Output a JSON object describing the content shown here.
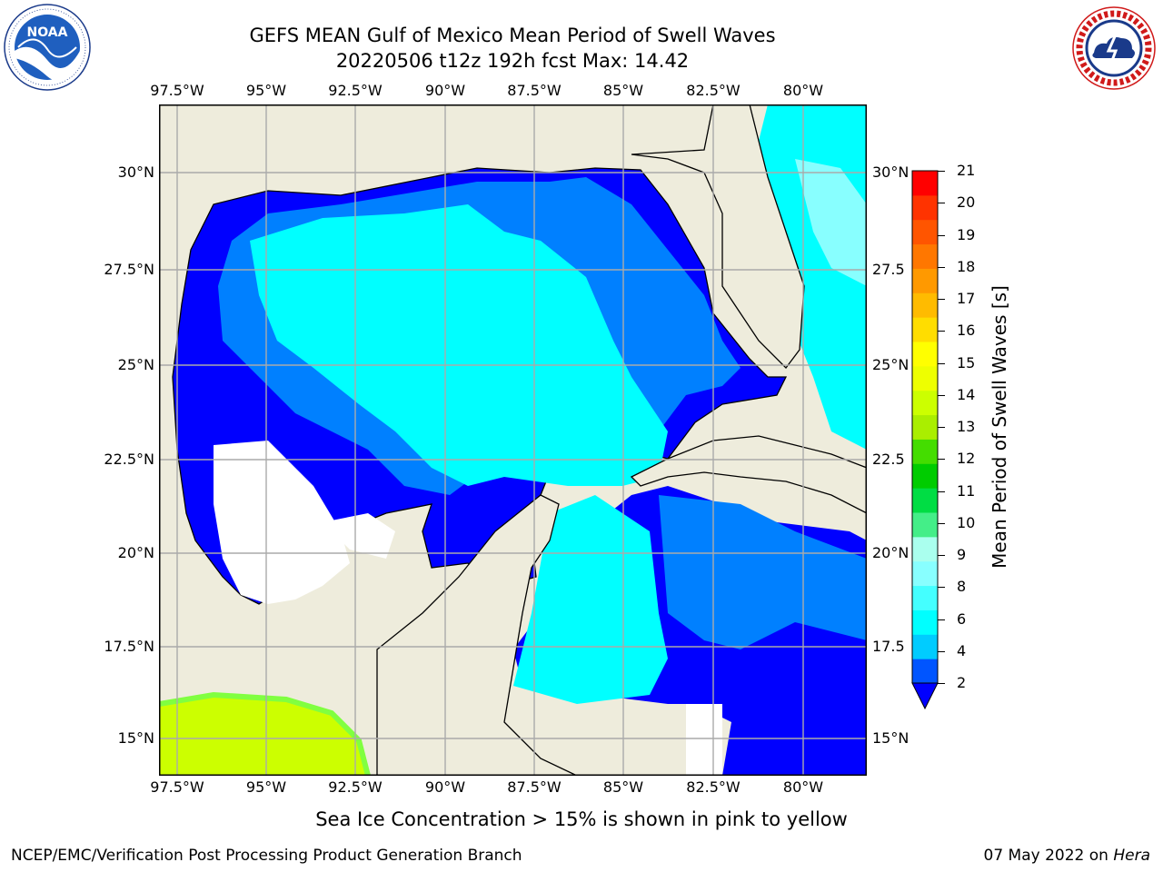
{
  "title": {
    "line1": "GEFS MEAN Gulf of Mexico Mean Period of Swell Waves",
    "line2": "20220506 t12z 192h fcst   Max: 14.42"
  },
  "logos": {
    "left": {
      "name": "NOAA",
      "ring_text": "NATIONAL OCEANIC AND ATMOSPHERIC ADMINISTRATION · U.S. DEPARTMENT OF COMMERCE"
    },
    "right": {
      "name": "NATIONAL WEATHER SERVICE"
    }
  },
  "map": {
    "lon_ticks": [
      "97.5°W",
      "95°W",
      "92.5°W",
      "90°W",
      "87.5°W",
      "85°W",
      "82.5°W",
      "80°W"
    ],
    "lat_ticks_left": [
      "30°N",
      "27.5°N",
      "25°N",
      "22.5°N",
      "20°N",
      "17.5°N",
      "15°N"
    ],
    "lat_ticks_right": [
      "30°N",
      "27.5",
      "25°N",
      "22.5",
      "20°N",
      "17.5",
      "15°N"
    ],
    "lon_range": [
      -98,
      -78
    ],
    "lat_range": [
      14,
      31.7
    ],
    "grid": true,
    "colors": {
      "land": "#eeecdc",
      "ocean_low": "#0000ff",
      "ocean_mid": "#0080ff",
      "ocean_high": "#00ffff",
      "ice_green": "#80ff40",
      "ice_yellow": "#ccff00"
    }
  },
  "colorbar": {
    "label": "Mean Period of Swell Waves [s]",
    "ticks": [
      "21",
      "20",
      "19",
      "18",
      "17",
      "16",
      "15",
      "14",
      "13",
      "12",
      "11",
      "10",
      "9",
      "8",
      "6",
      "4",
      "2"
    ],
    "colors_bottom_to_top": [
      "#0055ff",
      "#00ccff",
      "#00ffff",
      "#44ffff",
      "#88ffff",
      "#aaffee",
      "#44ee88",
      "#00dd44",
      "#00cc00",
      "#44dd00",
      "#aaee00",
      "#ccff00",
      "#eeff00",
      "#ffff00",
      "#ffdd00",
      "#ffbb00",
      "#ff9900",
      "#ff7700",
      "#ff5500",
      "#ff3300",
      "#ff0000"
    ],
    "extend_color": "#0000ff"
  },
  "note": "Sea Ice Concentration > 15% is shown in pink to yellow",
  "footer": {
    "left": "NCEP/EMC/Verification Post Processing Product Generation Branch",
    "date": "07 May 2022 on ",
    "machine": "Hera"
  }
}
